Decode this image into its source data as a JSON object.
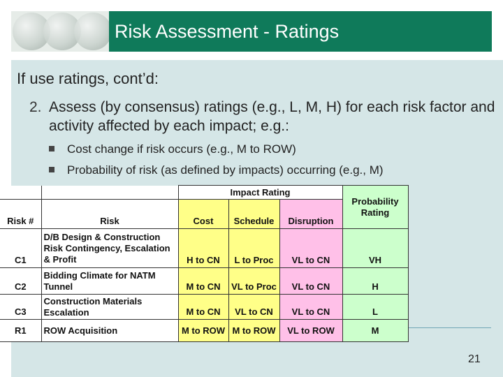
{
  "slide": {
    "title": "Risk Assessment - Ratings",
    "intro": "If use ratings, cont’d:",
    "item_number": "2.",
    "item_text": "Assess (by consensus) ratings (e.g., L, M, H) for each risk factor and activity affected by each impact; e.g.:",
    "bullets": [
      "Cost change if risk occurs (e.g., M to ROW)",
      "Probability of risk (as defined by impacts) occurring (e.g., M)"
    ],
    "page_number": "21"
  },
  "table": {
    "group_header": "Impact Rating",
    "headers": {
      "risk_num": "Risk #",
      "risk": "Risk",
      "cost": "Cost",
      "schedule": "Schedule",
      "disruption": "Disruption",
      "probability": "Probability Rating"
    },
    "rows": [
      {
        "id": "C1",
        "risk": "D/B Design & Construction Risk Contingency, Escalation & Profit",
        "cost": "H to CN",
        "schedule": "L to Proc",
        "disruption": "VL to CN",
        "probability": "VH"
      },
      {
        "id": "C2",
        "risk": "Bidding Climate for NATM Tunnel",
        "cost": "M to CN",
        "schedule": "VL to Proc",
        "disruption": "VL to CN",
        "probability": "H"
      },
      {
        "id": "C3",
        "risk": "Construction Materials Escalation",
        "cost": "M to CN",
        "schedule": "VL to CN",
        "disruption": "VL to CN",
        "probability": "L"
      },
      {
        "id": "R1",
        "risk": "ROW Acquisition",
        "cost": "M to ROW",
        "schedule": "M to ROW",
        "disruption": "VL to ROW",
        "probability": "M"
      }
    ]
  },
  "colors": {
    "banner": "#0f7a5a",
    "content_background": "#d5e6e7",
    "cost_column": "#ffff88",
    "schedule_column": "#ffff88",
    "disruption_column": "#ffc0e8",
    "probability_column": "#ccffcc"
  }
}
